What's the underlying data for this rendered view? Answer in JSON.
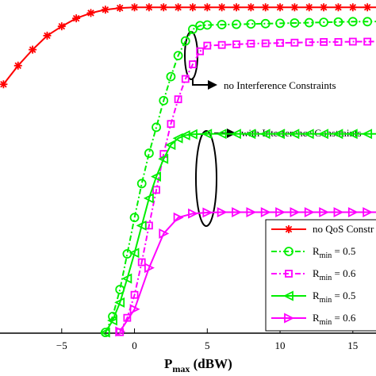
{
  "chart_data": {
    "type": "line",
    "xlabel": {
      "main": "P",
      "sub": "max",
      "rest": " (dBW)"
    },
    "xlim": [
      -9,
      19
    ],
    "ylim": [
      0,
      1
    ],
    "x_ticks": [
      -5,
      0,
      5,
      10,
      15
    ],
    "x_tick_labels": [
      "−5",
      "0",
      "5",
      "10",
      "15"
    ],
    "grid": false,
    "legend_position": "bottom-right",
    "series": [
      {
        "legend": {
          "main": "no QoS Constr",
          "sub": "",
          "rest": ""
        },
        "color": "#ff0000",
        "dash": "solid",
        "marker": "asterisk",
        "x": [
          -9,
          -8,
          -7,
          -6,
          -5,
          -4,
          -3,
          -2,
          -1,
          0,
          1,
          2,
          3,
          4,
          5,
          6,
          7,
          8,
          9,
          10,
          11,
          12,
          13,
          14,
          15,
          16,
          17,
          18,
          19
        ],
        "y": [
          0.747,
          0.803,
          0.851,
          0.893,
          0.921,
          0.945,
          0.961,
          0.971,
          0.976,
          0.978,
          0.978,
          0.978,
          0.978,
          0.978,
          0.978,
          0.978,
          0.978,
          0.978,
          0.978,
          0.978,
          0.978,
          0.978,
          0.978,
          0.978,
          0.978,
          0.978,
          0.978,
          0.978,
          0.978
        ]
      },
      {
        "legend": {
          "main": "R",
          "sub": "min",
          "rest": " = 0.5"
        },
        "color": "#00ee00",
        "dash": "dashdot",
        "marker": "circle",
        "x": [
          -2,
          -1.5,
          -1,
          -0.5,
          0,
          0.5,
          1,
          1.5,
          2,
          2.5,
          3,
          3.5,
          4,
          4.5,
          5,
          6,
          7,
          8,
          9,
          10,
          11,
          12,
          13,
          14,
          15,
          16,
          17,
          18,
          19
        ],
        "y": [
          0.002,
          0.05,
          0.131,
          0.238,
          0.347,
          0.449,
          0.54,
          0.618,
          0.698,
          0.77,
          0.833,
          0.877,
          0.912,
          0.923,
          0.925,
          0.926,
          0.927,
          0.928,
          0.929,
          0.93,
          0.931,
          0.932,
          0.933,
          0.934,
          0.935,
          0.935,
          0.936,
          0.936,
          0.937
        ]
      },
      {
        "legend": {
          "main": "R",
          "sub": "min",
          "rest": " = 0.6"
        },
        "color": "#ff00ff",
        "dash": "dashdot",
        "marker": "square",
        "x": [
          -1,
          -0.5,
          0,
          0.5,
          1,
          1.5,
          2,
          2.5,
          3,
          3.5,
          4,
          4.5,
          5,
          6,
          7,
          8,
          9,
          10,
          11,
          12,
          13,
          14,
          15,
          16,
          17,
          18,
          19
        ],
        "y": [
          0.003,
          0.046,
          0.115,
          0.213,
          0.323,
          0.43,
          0.538,
          0.628,
          0.702,
          0.763,
          0.807,
          0.846,
          0.863,
          0.865,
          0.867,
          0.869,
          0.87,
          0.871,
          0.872,
          0.873,
          0.874,
          0.874,
          0.875,
          0.875,
          0.876,
          0.876,
          0.876
        ]
      },
      {
        "legend": {
          "main": "R",
          "sub": "min",
          "rest": " = 0.5"
        },
        "color": "#00ee00",
        "dash": "solid",
        "marker": "triangle-left",
        "x": [
          -2,
          -1.5,
          -1,
          -0.5,
          0,
          0.5,
          1,
          1.5,
          2,
          2.5,
          3,
          3.5,
          4,
          5,
          6,
          7,
          8,
          9,
          10,
          11,
          12,
          13,
          14,
          15,
          16,
          17,
          18,
          19
        ],
        "y": [
          0.002,
          0.038,
          0.092,
          0.164,
          0.241,
          0.323,
          0.405,
          0.47,
          0.523,
          0.565,
          0.585,
          0.594,
          0.597,
          0.598,
          0.598,
          0.598,
          0.598,
          0.598,
          0.598,
          0.598,
          0.598,
          0.598,
          0.598,
          0.598,
          0.598,
          0.598,
          0.598,
          0.598
        ]
      },
      {
        "legend": {
          "main": "R",
          "sub": "min",
          "rest": " = 0.6"
        },
        "color": "#ff00ff",
        "dash": "solid",
        "marker": "triangle-right",
        "x": [
          -1,
          0,
          1,
          2,
          3,
          4,
          5,
          6,
          7,
          8,
          9,
          10,
          11,
          12,
          13,
          14,
          15,
          16,
          17,
          18,
          19
        ],
        "y": [
          0.005,
          0.072,
          0.196,
          0.299,
          0.347,
          0.359,
          0.362,
          0.363,
          0.363,
          0.363,
          0.363,
          0.363,
          0.363,
          0.363,
          0.363,
          0.363,
          0.363,
          0.363,
          0.363,
          0.363,
          0.363
        ]
      }
    ],
    "annotations": [
      {
        "text": "no Interference Constraints"
      },
      {
        "text": "with Interference Constraints"
      }
    ]
  }
}
